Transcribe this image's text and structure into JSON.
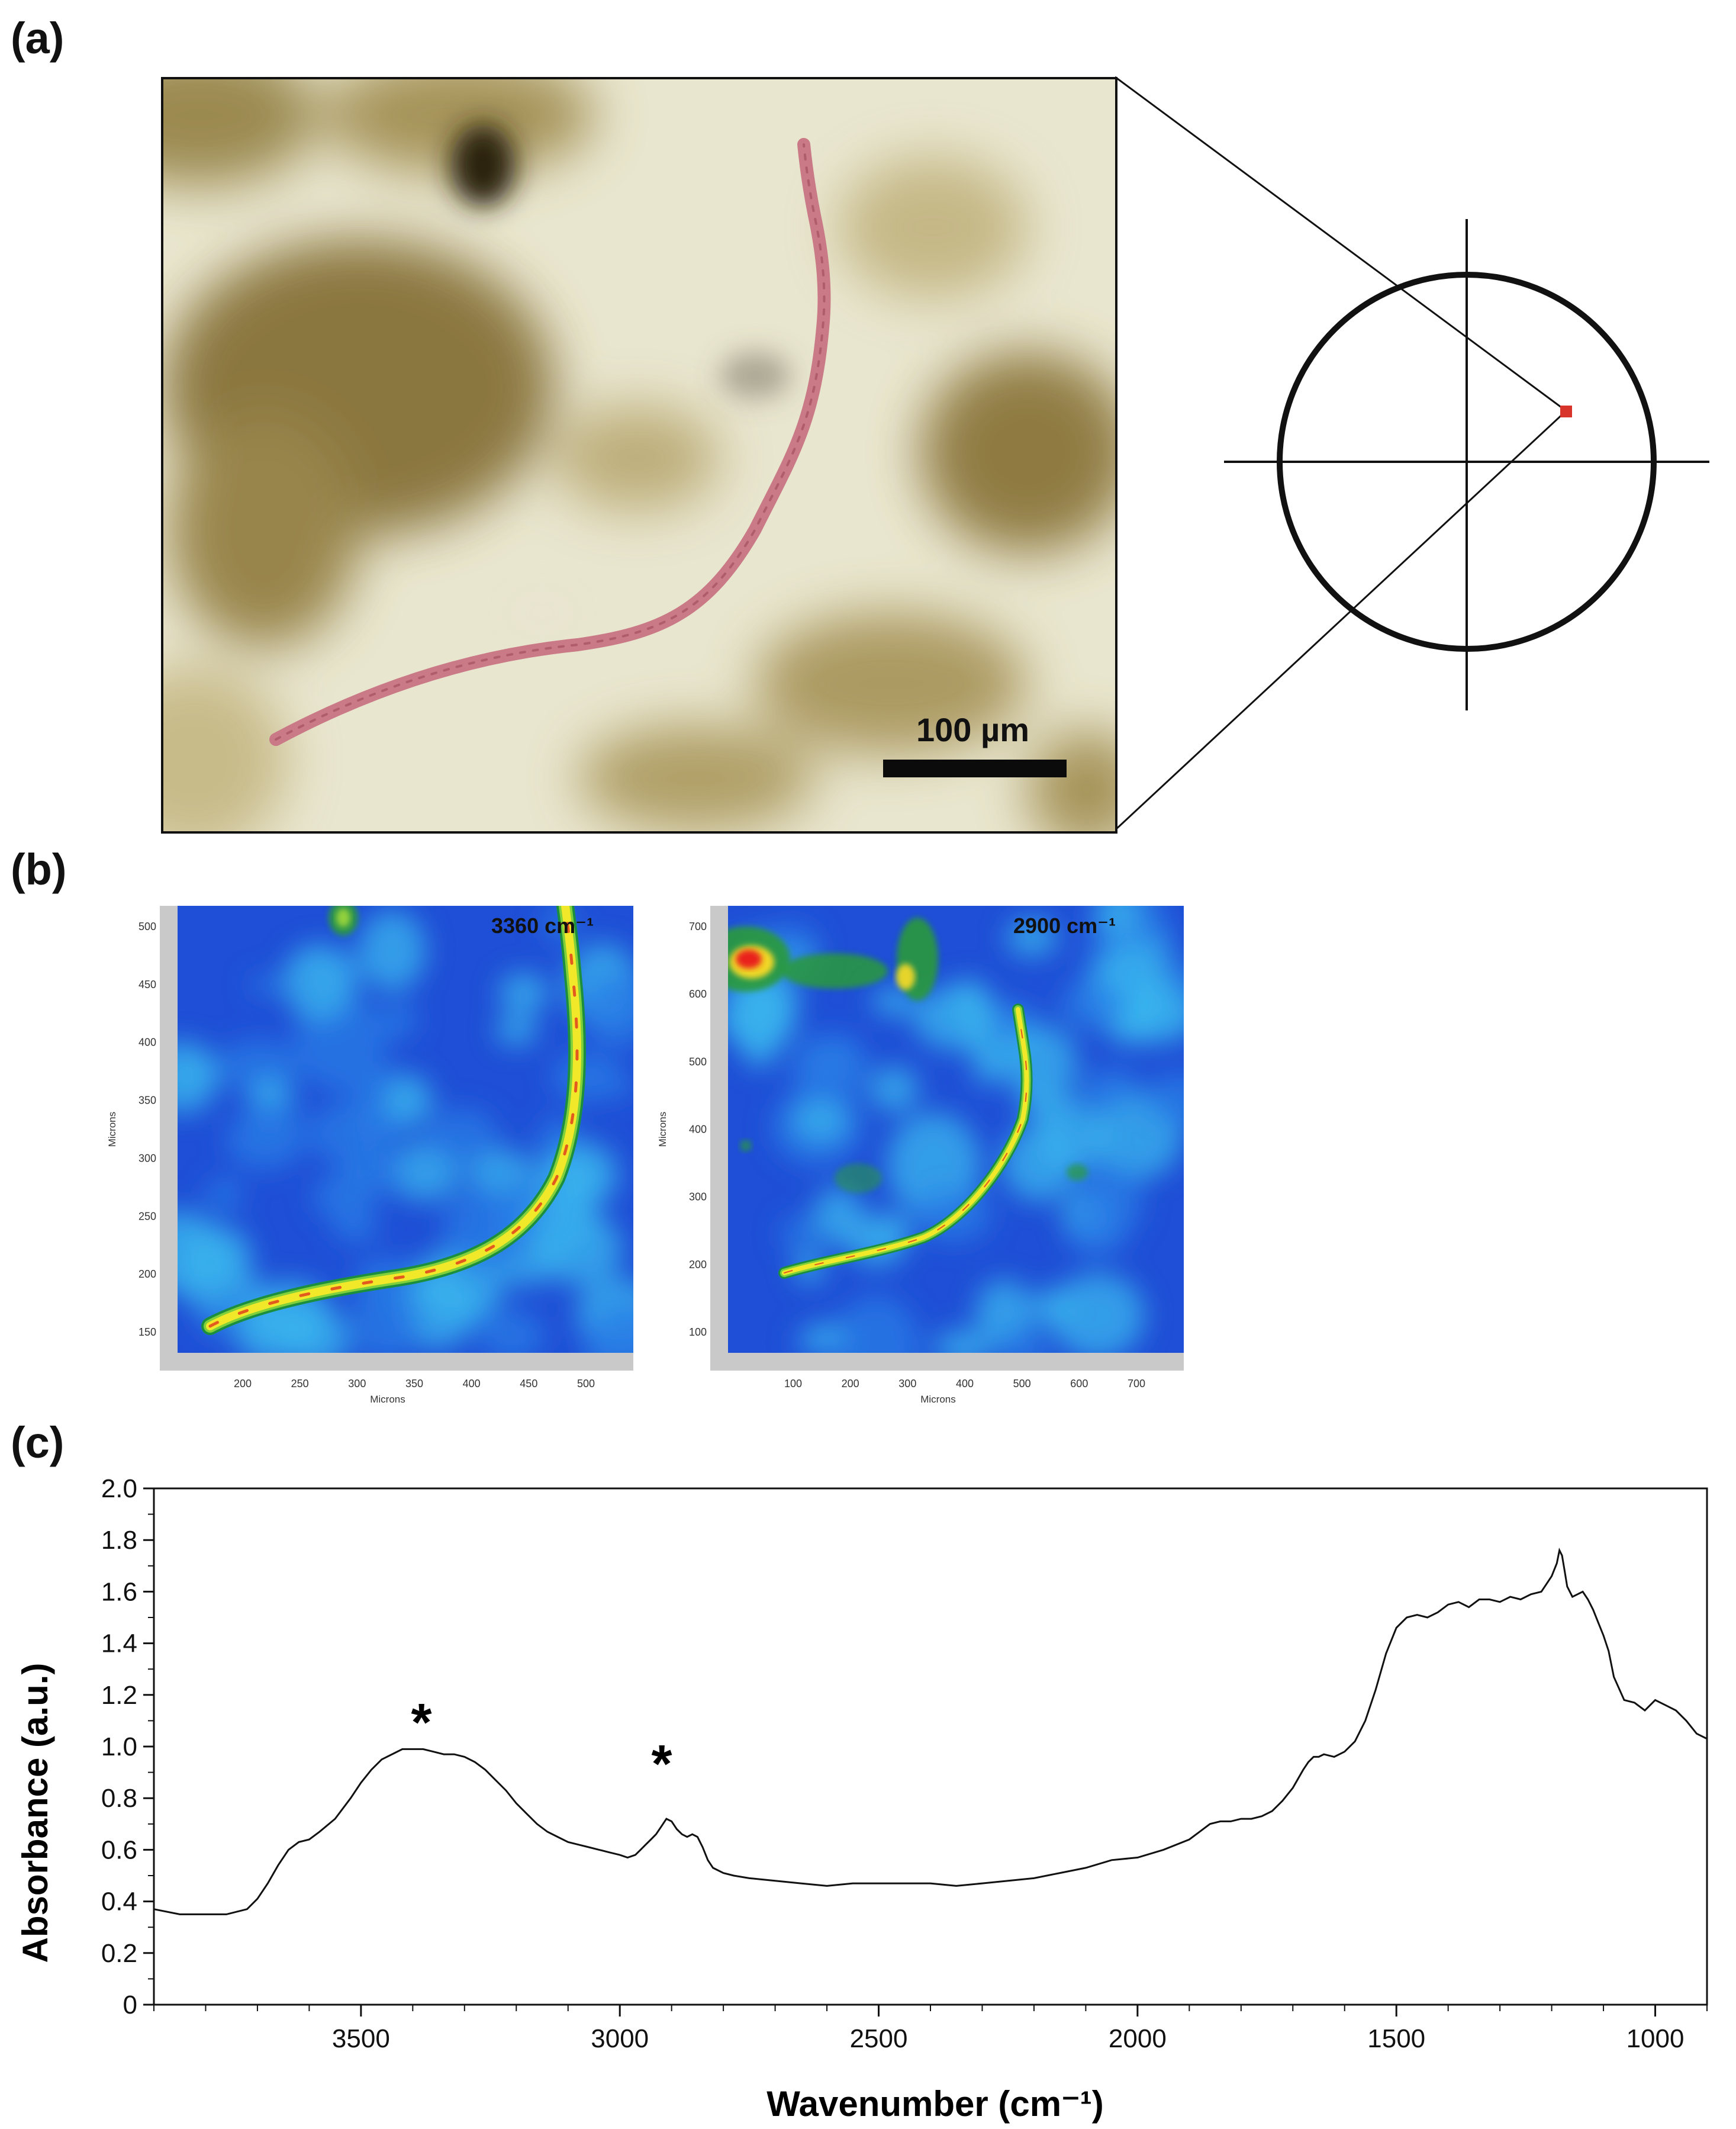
{
  "panels": {
    "a": "(a)",
    "b": "(b)",
    "c": "(c)"
  },
  "micrograph": {
    "scale_bar_label": "100 µm",
    "fiber_color": "#c97a86",
    "background_color": "#e9e6cf",
    "stain_color": "#7e6a2c"
  },
  "target_marker_color": "#d8342a",
  "maps": [
    {
      "wavenumber_label": "3360 cm⁻¹",
      "x_ticks": [
        "200",
        "250",
        "300",
        "350",
        "400",
        "450",
        "500"
      ],
      "y_ticks": [
        "500",
        "450",
        "400",
        "350",
        "300",
        "250",
        "200",
        "150"
      ],
      "xlabel": "Microns",
      "ylabel": "Microns"
    },
    {
      "wavenumber_label": "2900 cm⁻¹",
      "x_ticks": [
        "100",
        "200",
        "300",
        "400",
        "500",
        "600",
        "700"
      ],
      "y_ticks": [
        "700",
        "600",
        "500",
        "400",
        "300",
        "200",
        "100"
      ],
      "xlabel": "Microns",
      "ylabel": "Microns"
    }
  ],
  "chart_data": {
    "type": "line",
    "title": "",
    "xlabel": "Wavenumber (cm⁻¹)",
    "ylabel": "Absorbance (a.u.)",
    "xlim": [
      3900,
      900
    ],
    "ylim": [
      0,
      2.0
    ],
    "x_ticks": [
      3500,
      3000,
      2500,
      2000,
      1500,
      1000
    ],
    "y_ticks": [
      "0",
      "0.2",
      "0.4",
      "0.6",
      "0.8",
      "1.0",
      "1.2",
      "1.4",
      "1.6",
      "1.8",
      "2.0"
    ],
    "grid": false,
    "series": [
      {
        "x": [
          3900,
          3850,
          3800,
          3760,
          3720,
          3700,
          3680,
          3660,
          3640,
          3620,
          3600,
          3580,
          3550,
          3520,
          3500,
          3480,
          3460,
          3440,
          3420,
          3400,
          3380,
          3360,
          3340,
          3320,
          3300,
          3280,
          3260,
          3240,
          3220,
          3200,
          3180,
          3160,
          3140,
          3120,
          3100,
          3080,
          3060,
          3040,
          3020,
          3000,
          2985,
          2970,
          2960,
          2950,
          2940,
          2930,
          2920,
          2910,
          2900,
          2890,
          2880,
          2870,
          2860,
          2850,
          2840,
          2830,
          2820,
          2800,
          2780,
          2750,
          2700,
          2650,
          2600,
          2550,
          2500,
          2450,
          2400,
          2350,
          2300,
          2250,
          2200,
          2150,
          2100,
          2050,
          2000,
          1950,
          1900,
          1880,
          1860,
          1840,
          1820,
          1800,
          1780,
          1760,
          1740,
          1720,
          1700,
          1680,
          1670,
          1660,
          1650,
          1640,
          1620,
          1600,
          1580,
          1560,
          1540,
          1520,
          1500,
          1480,
          1460,
          1440,
          1420,
          1400,
          1380,
          1360,
          1340,
          1320,
          1300,
          1280,
          1260,
          1240,
          1220,
          1210,
          1200,
          1190,
          1185,
          1180,
          1175,
          1170,
          1160,
          1150,
          1140,
          1130,
          1120,
          1110,
          1100,
          1090,
          1080,
          1060,
          1040,
          1020,
          1000,
          980,
          960,
          940,
          920,
          900
        ],
        "y": [
          0.37,
          0.35,
          0.35,
          0.35,
          0.37,
          0.41,
          0.47,
          0.54,
          0.6,
          0.63,
          0.64,
          0.67,
          0.72,
          0.8,
          0.86,
          0.91,
          0.95,
          0.97,
          0.99,
          0.99,
          0.99,
          0.98,
          0.97,
          0.97,
          0.96,
          0.94,
          0.91,
          0.87,
          0.83,
          0.78,
          0.74,
          0.7,
          0.67,
          0.65,
          0.63,
          0.62,
          0.61,
          0.6,
          0.59,
          0.58,
          0.57,
          0.58,
          0.6,
          0.62,
          0.64,
          0.66,
          0.69,
          0.72,
          0.71,
          0.68,
          0.66,
          0.65,
          0.66,
          0.65,
          0.61,
          0.56,
          0.53,
          0.51,
          0.5,
          0.49,
          0.48,
          0.47,
          0.46,
          0.47,
          0.47,
          0.47,
          0.47,
          0.46,
          0.47,
          0.48,
          0.49,
          0.51,
          0.53,
          0.56,
          0.57,
          0.6,
          0.64,
          0.67,
          0.7,
          0.71,
          0.71,
          0.72,
          0.72,
          0.73,
          0.75,
          0.79,
          0.84,
          0.91,
          0.94,
          0.96,
          0.96,
          0.97,
          0.96,
          0.98,
          1.02,
          1.1,
          1.22,
          1.36,
          1.46,
          1.5,
          1.51,
          1.5,
          1.52,
          1.55,
          1.56,
          1.54,
          1.57,
          1.57,
          1.56,
          1.58,
          1.57,
          1.59,
          1.6,
          1.63,
          1.66,
          1.71,
          1.76,
          1.74,
          1.68,
          1.62,
          1.58,
          1.59,
          1.6,
          1.57,
          1.53,
          1.48,
          1.43,
          1.37,
          1.27,
          1.18,
          1.17,
          1.14,
          1.18,
          1.16,
          1.14,
          1.1,
          1.05,
          1.03
        ]
      }
    ],
    "annotations": [
      "*",
      "*"
    ]
  }
}
